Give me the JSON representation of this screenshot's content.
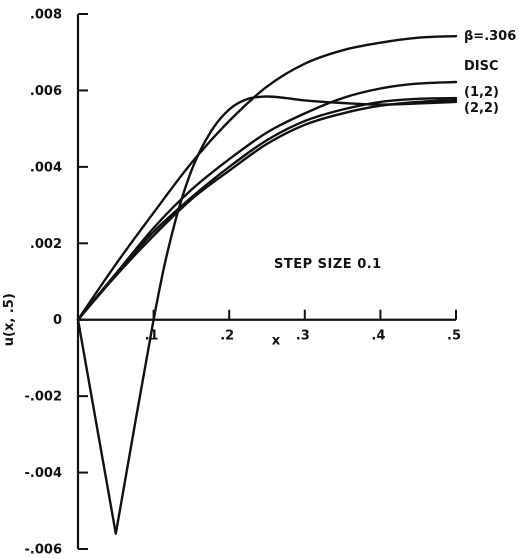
{
  "chart_data": {
    "type": "line",
    "title": "",
    "xlabel": "x",
    "ylabel": "u(x, .5)",
    "xlim": [
      0,
      0.5
    ],
    "ylim": [
      -0.006,
      0.008
    ],
    "x_ticks": [
      {
        "value": 0.1,
        "label": ".1"
      },
      {
        "value": 0.2,
        "label": ".2"
      },
      {
        "value": 0.3,
        "label": ".3"
      },
      {
        "value": 0.4,
        "label": ".4"
      },
      {
        "value": 0.5,
        "label": ".5"
      }
    ],
    "y_ticks": [
      {
        "value": 0.008,
        "label": ".008"
      },
      {
        "value": 0.006,
        "label": ".006"
      },
      {
        "value": 0.004,
        "label": ".004"
      },
      {
        "value": 0.002,
        "label": ".002"
      },
      {
        "value": 0,
        "label": "0"
      },
      {
        "value": -0.002,
        "label": "-.002"
      },
      {
        "value": -0.004,
        "label": "-.004"
      },
      {
        "value": -0.006,
        "label": "-.006"
      }
    ],
    "annotation": "STEP SIZE 0.1",
    "grid": false,
    "series": [
      {
        "name": "β=.306",
        "x": [
          0,
          0.05,
          0.1,
          0.15,
          0.2,
          0.25,
          0.3,
          0.35,
          0.4,
          0.45,
          0.5
        ],
        "y": [
          0,
          0.00145,
          0.0028,
          0.0041,
          0.0052,
          0.0061,
          0.0067,
          0.00705,
          0.00725,
          0.00738,
          0.00742
        ]
      },
      {
        "name": "DISC",
        "x": [
          0,
          0.05,
          0.1,
          0.15,
          0.2,
          0.25,
          0.3,
          0.35,
          0.4,
          0.45,
          0.5
        ],
        "y": [
          0,
          0.0012,
          0.0024,
          0.0034,
          0.0042,
          0.0049,
          0.0054,
          0.0058,
          0.00605,
          0.00618,
          0.00622
        ]
      },
      {
        "name": "(1,2)",
        "x": [
          0,
          0.05,
          0.1,
          0.15,
          0.2,
          0.25,
          0.3,
          0.35,
          0.4,
          0.45,
          0.5
        ],
        "y": [
          0,
          0.0012,
          0.0023,
          0.0032,
          0.004,
          0.0047,
          0.0052,
          0.0055,
          0.0057,
          0.00578,
          0.0058
        ]
      },
      {
        "name": "(2,2)",
        "x": [
          0,
          0.05,
          0.1,
          0.15,
          0.2,
          0.25,
          0.3,
          0.35,
          0.4,
          0.45,
          0.5
        ],
        "y": [
          0,
          0.00115,
          0.0022,
          0.00315,
          0.0039,
          0.0046,
          0.0051,
          0.0054,
          0.0056,
          0.0057,
          0.00575
        ]
      },
      {
        "name": "",
        "x": [
          0,
          0.05,
          0.1,
          0.125,
          0.15,
          0.175,
          0.2,
          0.225,
          0.25,
          0.275,
          0.3,
          0.35,
          0.4,
          0.45,
          0.5
        ],
        "y": [
          0,
          -0.0056,
          0.0,
          0.0023,
          0.0039,
          0.0049,
          0.0055,
          0.00578,
          0.00584,
          0.0058,
          0.00574,
          0.00567,
          0.00563,
          0.00566,
          0.0057
        ]
      }
    ]
  }
}
